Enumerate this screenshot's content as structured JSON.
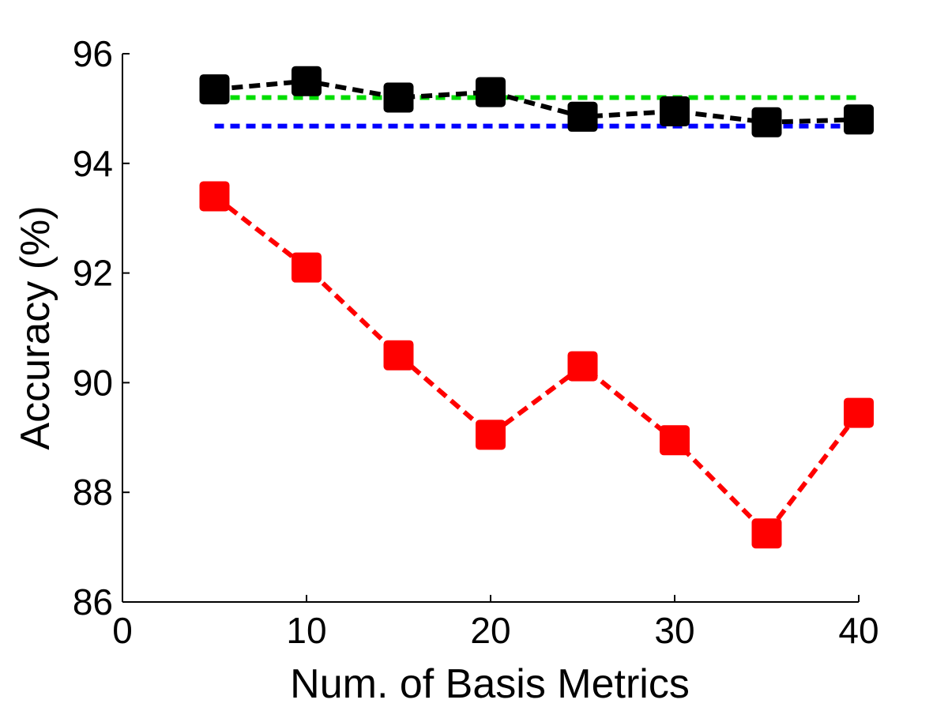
{
  "chart_data": {
    "type": "line",
    "title": "",
    "xlabel": "Num. of Basis Metrics",
    "ylabel": "Accuracy (%)",
    "xlim": [
      0,
      40
    ],
    "ylim": [
      86,
      96
    ],
    "xticks": [
      0,
      10,
      20,
      30,
      40
    ],
    "yticks": [
      86,
      88,
      90,
      92,
      94,
      96
    ],
    "x": [
      5,
      10,
      15,
      20,
      25,
      30,
      35,
      40
    ],
    "series": [
      {
        "name": "black-series",
        "color": "#000000",
        "marker": "square",
        "values": [
          95.35,
          95.5,
          95.2,
          95.3,
          94.85,
          94.95,
          94.75,
          94.8
        ]
      },
      {
        "name": "red-series",
        "color": "#ff0000",
        "marker": "square",
        "values": [
          93.4,
          92.1,
          90.5,
          89.05,
          90.3,
          88.95,
          87.25,
          89.45
        ]
      }
    ],
    "reference_lines": [
      {
        "name": "green-reference",
        "color": "#00dd00",
        "value": 95.2
      },
      {
        "name": "blue-reference",
        "color": "#0000ff",
        "value": 94.68
      }
    ]
  }
}
